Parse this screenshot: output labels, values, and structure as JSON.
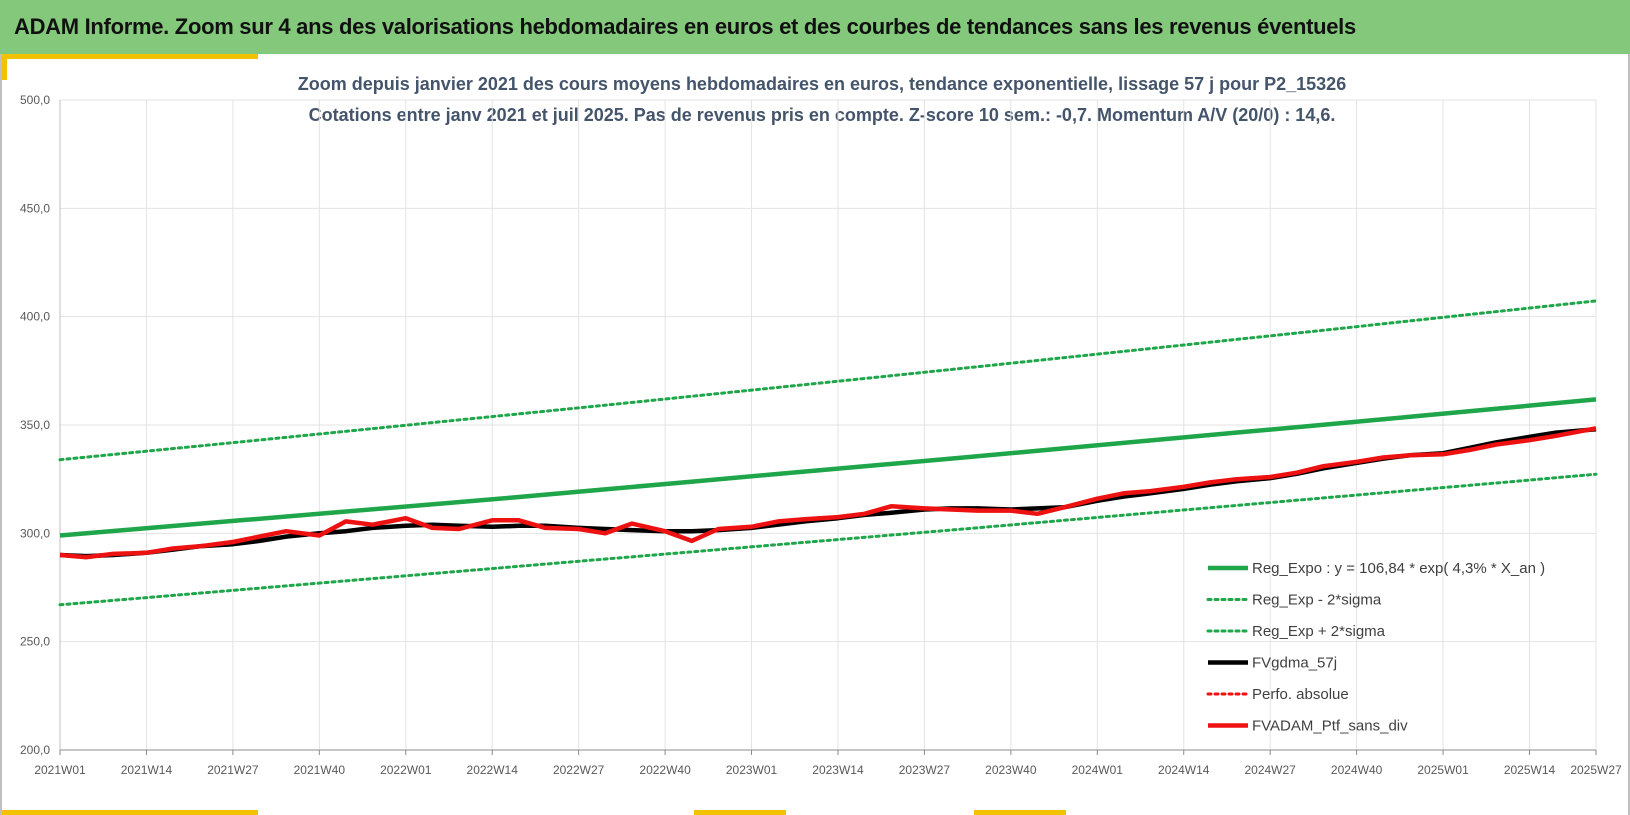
{
  "header": {
    "title": "ADAM Informe. Zoom sur 4 ans des valorisations hebdomadaires en euros et des courbes de tendances sans les revenus éventuels"
  },
  "colors": {
    "header_bg": "#84c87c",
    "accent": "#f2c200",
    "trend": "#1fa64a",
    "trend_band": "#1fa64a",
    "smoothed": "#000000",
    "portfolio": "#ee1111",
    "grid": "#e3e3e3"
  },
  "chart_data": {
    "type": "line",
    "title": "Zoom depuis janvier 2021 des cours moyens hebdomadaires  en euros, tendance exponentielle, lissage 57 j pour  P2_15326",
    "subtitle": "Cotations entre janv 2021 et juil 2025. Pas de revenus pris en compte. Z-score 10 sem.: -0,7. Momentum A/V (20/0) : 14,6.",
    "xlabel": "",
    "ylabel": "",
    "ylim": [
      200,
      500
    ],
    "y_ticks": [
      "200,0",
      "250,0",
      "300,0",
      "350,0",
      "400,0",
      "450,0",
      "500,0"
    ],
    "x_ticks": [
      "2021W01",
      "2021W14",
      "2021W27",
      "2021W40",
      "2022W01",
      "2022W14",
      "2022W27",
      "2022W40",
      "2023W01",
      "2023W14",
      "2023W27",
      "2023W40",
      "2024W01",
      "2024W14",
      "2024W27",
      "2024W40",
      "2025W01",
      "2025W14",
      "2025W27"
    ],
    "grid": true,
    "legend_position": "bottom-right",
    "series": [
      {
        "name": "Reg_Expo : y = 106,84 * exp( 4,3% *  X_an )",
        "style": "solid-thick",
        "color": "#1fa64a",
        "values": [
          299.0,
          302.5,
          306.0,
          309.5,
          313.0,
          316.5,
          320.2,
          323.9,
          327.6,
          331.3,
          335.0,
          338.8,
          342.6,
          346.4,
          350.2,
          354.0,
          357.9,
          361.8
        ]
      },
      {
        "name": "Reg_Exp - 2*sigma",
        "style": "dotted",
        "color": "#1fa64a",
        "values": [
          267.0,
          270.5,
          274.0,
          277.5,
          281.0,
          284.5,
          288.0,
          291.5,
          295.0,
          298.5,
          302.0,
          305.6,
          309.2,
          312.8,
          316.4,
          320.0,
          323.6,
          327.3
        ]
      },
      {
        "name": "Reg_Exp + 2*sigma",
        "style": "dotted",
        "color": "#1fa64a",
        "values": [
          334.0,
          338.1,
          342.2,
          346.4,
          350.6,
          354.8,
          359.0,
          363.3,
          367.6,
          371.9,
          376.2,
          380.6,
          385.0,
          389.4,
          393.8,
          398.3,
          402.8,
          407.3
        ]
      },
      {
        "name": "FVgdma_57j",
        "style": "solid-thick",
        "color": "#000000",
        "x": [
          0,
          4,
          8,
          13,
          17,
          21,
          26,
          30,
          34,
          39,
          43,
          47,
          52,
          56,
          60,
          65,
          69,
          73,
          78,
          82,
          86,
          91,
          95,
          99,
          104,
          108,
          112,
          117,
          121,
          125,
          130,
          134,
          138,
          143,
          147,
          151,
          156,
          160,
          164,
          169,
          173,
          177,
          182,
          186,
          190,
          195,
          199,
          203,
          208,
          212,
          216,
          221,
          225,
          231
        ],
        "values": [
          290.0,
          289.5,
          290.0,
          291.0,
          292.5,
          294.0,
          295.0,
          296.5,
          298.5,
          300.0,
          301.0,
          302.5,
          303.5,
          304.0,
          303.5,
          303.0,
          303.5,
          303.5,
          302.5,
          302.0,
          301.5,
          301.0,
          301.0,
          301.5,
          302.5,
          304.0,
          305.5,
          307.0,
          308.5,
          309.5,
          311.0,
          311.5,
          311.5,
          311.0,
          311.5,
          312.0,
          315.0,
          317.0,
          318.5,
          320.5,
          322.5,
          324.0,
          325.5,
          327.5,
          330.0,
          332.5,
          334.5,
          336.0,
          337.0,
          339.5,
          342.0,
          344.5,
          346.5,
          348.0
        ]
      },
      {
        "name": "Perfo. absolue",
        "style": "dotted",
        "color": "#ee1111",
        "values": []
      },
      {
        "name": "FVADAM_Ptf_sans_div",
        "style": "solid-thick",
        "color": "#ee1111",
        "x": [
          0,
          4,
          8,
          13,
          17,
          21,
          26,
          30,
          34,
          39,
          43,
          47,
          52,
          56,
          60,
          65,
          69,
          73,
          78,
          82,
          86,
          91,
          95,
          99,
          104,
          108,
          112,
          117,
          121,
          125,
          130,
          134,
          138,
          143,
          147,
          151,
          156,
          160,
          164,
          169,
          173,
          177,
          182,
          186,
          190,
          195,
          199,
          203,
          208,
          212,
          216,
          221,
          225,
          231
        ],
        "values": [
          290.0,
          289.0,
          290.5,
          291.0,
          293.0,
          294.0,
          296.0,
          298.5,
          301.0,
          299.0,
          305.5,
          304.0,
          307.0,
          302.5,
          302.0,
          306.0,
          306.0,
          302.5,
          302.0,
          300.0,
          304.5,
          301.0,
          296.5,
          302.0,
          303.0,
          305.5,
          306.5,
          307.5,
          309.0,
          312.5,
          311.5,
          311.0,
          310.5,
          310.5,
          309.0,
          312.0,
          316.0,
          318.5,
          319.5,
          321.5,
          323.5,
          325.0,
          326.0,
          328.0,
          331.0,
          333.0,
          335.0,
          336.0,
          336.5,
          338.5,
          341.0,
          343.0,
          345.0,
          348.5
        ]
      }
    ]
  }
}
